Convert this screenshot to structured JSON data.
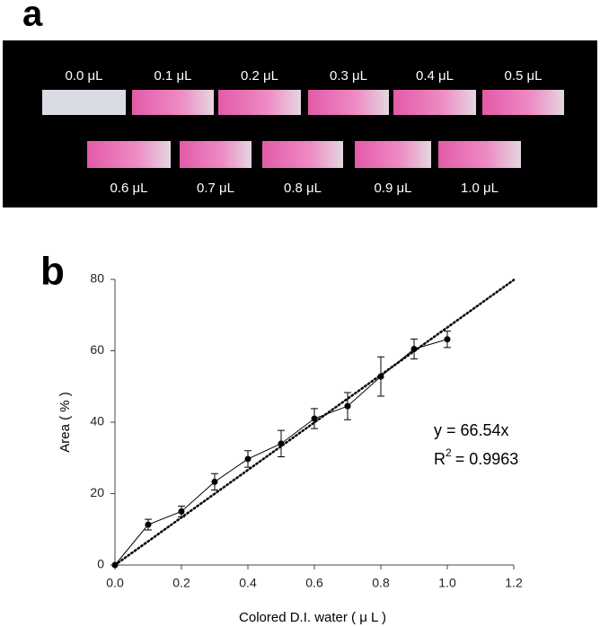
{
  "panel_a": {
    "label": "a",
    "strips": [
      "0.0 μL",
      "0.1 μL",
      "0.2 μL",
      "0.3 μL",
      "0.4 μL",
      "0.5 μL",
      "0.6 μL",
      "0.7 μL",
      "0.8 μL",
      "0.9 μL",
      "1.0 μL"
    ]
  },
  "chart_data": {
    "type": "line",
    "panel_label": "b",
    "xlabel": "Colored D.I. water ( μ L )",
    "ylabel": "Area ( % )",
    "x": [
      0,
      0.1,
      0.2,
      0.3,
      0.4,
      0.5,
      0.6,
      0.7,
      0.8,
      0.9,
      1.0
    ],
    "series": [
      {
        "color": "#000000",
        "values": [
          0,
          11.3,
          15,
          23.3,
          29.7,
          34,
          41,
          44.5,
          52.8,
          60.5,
          63.2
        ],
        "errors": [
          0,
          1.5,
          1.5,
          2.3,
          2.3,
          3.7,
          2.8,
          3.8,
          5.5,
          2.8,
          2.3
        ]
      }
    ],
    "fit": {
      "slope": 66.54,
      "equation": "y = 66.54x",
      "r2_base": "R",
      "r2_sup": "2",
      "r2_value": "= 0.9963"
    },
    "xlim": [
      0,
      1.2
    ],
    "ylim": [
      0,
      80
    ],
    "xticks": [
      {
        "value": 0,
        "label": "0.0"
      },
      {
        "value": 0.2,
        "label": "0.2"
      },
      {
        "value": 0.4,
        "label": "0.4"
      },
      {
        "value": 0.6,
        "label": "0.6"
      },
      {
        "value": 0.8,
        "label": "0.8"
      },
      {
        "value": 1.0,
        "label": "1.0"
      },
      {
        "value": 1.2,
        "label": "1.2"
      }
    ],
    "yticks": [
      0,
      20,
      40,
      60,
      80
    ]
  }
}
